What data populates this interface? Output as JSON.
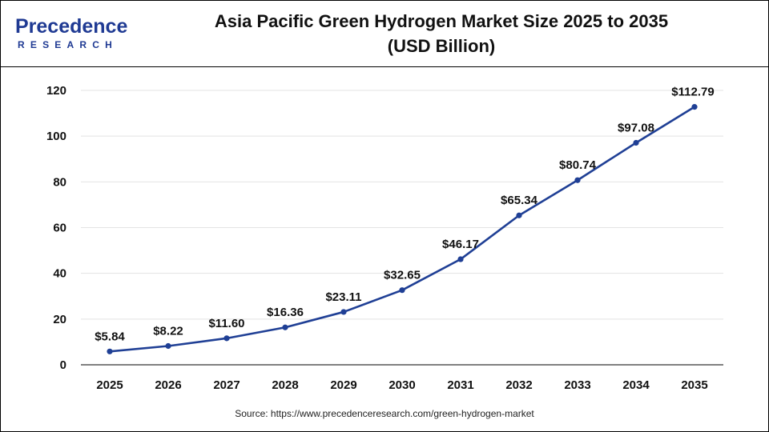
{
  "header": {
    "logo_main": "Precedence",
    "logo_sub": "RESEARCH",
    "title_line1": "Asia Pacific Green Hydrogen Market Size 2025 to 2035",
    "title_line2": "(USD Billion)"
  },
  "colors": {
    "line": "#1f3f95",
    "marker": "#1f3f95",
    "grid": "#e3e3e3",
    "axis": "#000000",
    "logo": "#1f3a93"
  },
  "chart_data": {
    "type": "line",
    "title": "Asia Pacific Green Hydrogen Market Size 2025 to 2035 (USD Billion)",
    "xlabel": "",
    "ylabel": "",
    "categories": [
      "2025",
      "2026",
      "2027",
      "2028",
      "2029",
      "2030",
      "2031",
      "2032",
      "2033",
      "2034",
      "2035"
    ],
    "series": [
      {
        "values": [
          5.84,
          8.22,
          11.6,
          16.36,
          23.11,
          32.65,
          46.17,
          65.34,
          80.74,
          97.08,
          112.79
        ],
        "labels": [
          "$5.84",
          "$8.22",
          "$11.60",
          "$16.36",
          "$23.11",
          "$32.65",
          "$46.17",
          "$65.34",
          "$80.74",
          "$97.08",
          "$112.79"
        ]
      }
    ],
    "ylim": [
      0,
      120
    ],
    "yticks": [
      "0",
      "20",
      "40",
      "60",
      "80",
      "100",
      "120"
    ],
    "grid": true,
    "legend": "none"
  },
  "footer": {
    "source": "Source: https://www.precedenceresearch.com/green-hydrogen-market"
  }
}
